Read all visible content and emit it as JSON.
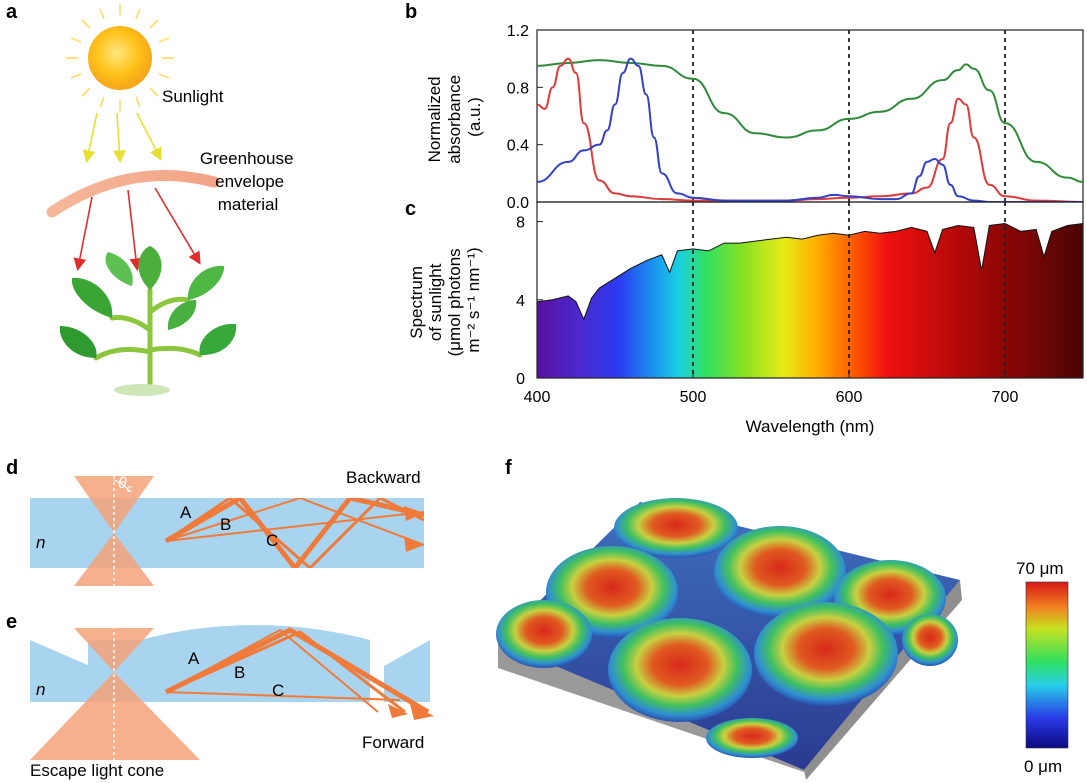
{
  "panels": {
    "a": {
      "label": "a",
      "sunlight": "Sunlight",
      "envelope": [
        "Greenhouse",
        "envelope",
        "material"
      ]
    },
    "b": {
      "label": "b"
    },
    "c": {
      "label": "c"
    },
    "d": {
      "label": "d",
      "n": "n",
      "theta": "θ",
      "theta_sub": "c",
      "backward": "Backward",
      "rays": [
        "A",
        "B",
        "C"
      ]
    },
    "e": {
      "label": "e",
      "n": "n",
      "forward": "Forward",
      "escape": "Escape light cone",
      "rays": [
        "A",
        "B",
        "C"
      ]
    },
    "f": {
      "label": "f",
      "scale_top": "70 μm",
      "scale_bottom": "0 μm"
    }
  },
  "colors": {
    "chl_a_red": "#e0393a",
    "chl_b_blue": "#3340c8",
    "sample_green": "#2f8a3a",
    "ray_orange": "#f07a3a",
    "waveguide_blue": "#a9d4ef",
    "cone_orange": "#f4a27a"
  },
  "chart_data": [
    {
      "id": "b",
      "type": "line",
      "ylabel": [
        "Normalized",
        "absorbance",
        "(a.u.)"
      ],
      "xlim": [
        400,
        750
      ],
      "ylim": [
        0,
        1.2
      ],
      "yticks": [
        "0.0",
        "0.4",
        "0.8",
        "1.2"
      ],
      "yticks_values": [
        0,
        0.4,
        0.8,
        1.2
      ],
      "vlines": [
        500,
        600,
        700
      ],
      "series": [
        {
          "color": "#2f8a3a",
          "x": [
            400,
            420,
            440,
            460,
            480,
            500,
            520,
            540,
            560,
            580,
            600,
            620,
            640,
            660,
            670,
            675,
            680,
            690,
            700,
            720,
            740,
            750
          ],
          "y": [
            0.95,
            0.97,
            0.99,
            0.97,
            0.95,
            0.86,
            0.62,
            0.48,
            0.45,
            0.5,
            0.58,
            0.63,
            0.72,
            0.85,
            0.92,
            0.96,
            0.93,
            0.78,
            0.55,
            0.28,
            0.17,
            0.14
          ]
        },
        {
          "color": "#e0393a",
          "x": [
            400,
            405,
            410,
            415,
            420,
            425,
            430,
            440,
            450,
            460,
            480,
            500,
            560,
            580,
            600,
            620,
            640,
            650,
            660,
            665,
            670,
            675,
            680,
            690,
            700,
            720,
            750
          ],
          "y": [
            0.68,
            0.65,
            0.8,
            0.95,
            1.0,
            0.9,
            0.55,
            0.15,
            0.06,
            0.04,
            0.02,
            0.01,
            0.01,
            0.02,
            0.03,
            0.04,
            0.06,
            0.1,
            0.3,
            0.55,
            0.72,
            0.68,
            0.45,
            0.12,
            0.04,
            0.01,
            0.0
          ]
        },
        {
          "color": "#3340c8",
          "x": [
            400,
            420,
            430,
            440,
            445,
            450,
            455,
            460,
            465,
            470,
            475,
            480,
            490,
            500,
            520,
            560,
            580,
            590,
            600,
            620,
            630,
            640,
            645,
            650,
            655,
            660,
            665,
            670,
            680,
            690,
            750
          ],
          "y": [
            0.14,
            0.28,
            0.36,
            0.4,
            0.5,
            0.68,
            0.9,
            1.0,
            0.95,
            0.75,
            0.45,
            0.2,
            0.06,
            0.03,
            0.01,
            0.01,
            0.03,
            0.05,
            0.04,
            0.02,
            0.02,
            0.06,
            0.18,
            0.28,
            0.3,
            0.26,
            0.12,
            0.04,
            0.01,
            0.0,
            0.0
          ]
        }
      ]
    },
    {
      "id": "c",
      "type": "area",
      "ylabel": [
        "Spectrum",
        "of sunlight",
        "(μmol photons",
        "m⁻² s⁻¹ nm⁻¹)"
      ],
      "xlabel": "Wavelength (nm)",
      "xlim": [
        400,
        750
      ],
      "ylim": [
        0,
        9
      ],
      "xticks": [
        "400",
        "500",
        "600",
        "700"
      ],
      "xticks_values": [
        400,
        500,
        600,
        700
      ],
      "yticks": [
        "0",
        "4",
        "8"
      ],
      "yticks_values": [
        0,
        4,
        8
      ],
      "vlines": [
        500,
        600,
        700
      ],
      "series": [
        {
          "name": "",
          "x": [
            400,
            410,
            420,
            425,
            430,
            435,
            440,
            450,
            460,
            470,
            480,
            485,
            490,
            500,
            510,
            520,
            530,
            540,
            550,
            560,
            570,
            580,
            590,
            600,
            610,
            620,
            630,
            640,
            650,
            655,
            660,
            670,
            680,
            685,
            690,
            700,
            710,
            720,
            725,
            730,
            740,
            750
          ],
          "y": [
            3.9,
            4.0,
            4.2,
            3.9,
            3.0,
            4.1,
            4.6,
            5.1,
            5.6,
            6.0,
            6.3,
            5.4,
            6.5,
            6.6,
            6.5,
            6.9,
            6.9,
            7.0,
            7.1,
            7.2,
            7.1,
            7.3,
            7.4,
            7.3,
            7.5,
            7.4,
            7.5,
            7.7,
            7.5,
            6.4,
            7.6,
            7.8,
            7.7,
            5.5,
            7.8,
            7.9,
            7.5,
            7.6,
            6.2,
            7.5,
            7.8,
            7.9
          ]
        }
      ]
    }
  ]
}
